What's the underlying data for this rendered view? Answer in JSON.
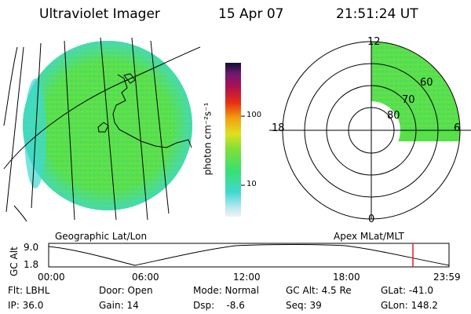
{
  "header": {
    "instrument": "Ultraviolet Imager",
    "date": "15 Apr 07",
    "time": "21:51:24 UT"
  },
  "colorbar": {
    "label": "photon cm⁻²s⁻¹",
    "ticks": [
      "100",
      "10"
    ],
    "scale": "log"
  },
  "left_panel": {
    "label": "Geographic Lat/Lon"
  },
  "right_panel": {
    "label": "Apex MLat/MLT",
    "mlt_labels": {
      "top": "12",
      "left": "18",
      "right": "6",
      "bottom": "0"
    },
    "mlat_labels": [
      "80",
      "70",
      "60"
    ]
  },
  "timeline": {
    "ylabel": "GC Alt",
    "yticks": [
      "9.0",
      "1.8"
    ],
    "xticks": [
      "00:00",
      "06:00",
      "12:00",
      "18:00",
      "23:59"
    ],
    "current_time": "21:51"
  },
  "info": {
    "filter": "Flt: LBHL",
    "ip": "IP: 36.0",
    "door": "Door: Open",
    "gain": "Gain: 14",
    "mode": "Mode: Normal",
    "dsp": "Dsp:    -8.6",
    "gc_alt": "GC Alt: 4.5 Re",
    "seq": "Seq: 39",
    "glat": "GLat: -41.0",
    "glon": "GLon: 148.2"
  },
  "colors": {
    "auroral_green": "#4ee048",
    "auroral_cyan": "#40d8d0",
    "marker_red": "#e02020"
  }
}
